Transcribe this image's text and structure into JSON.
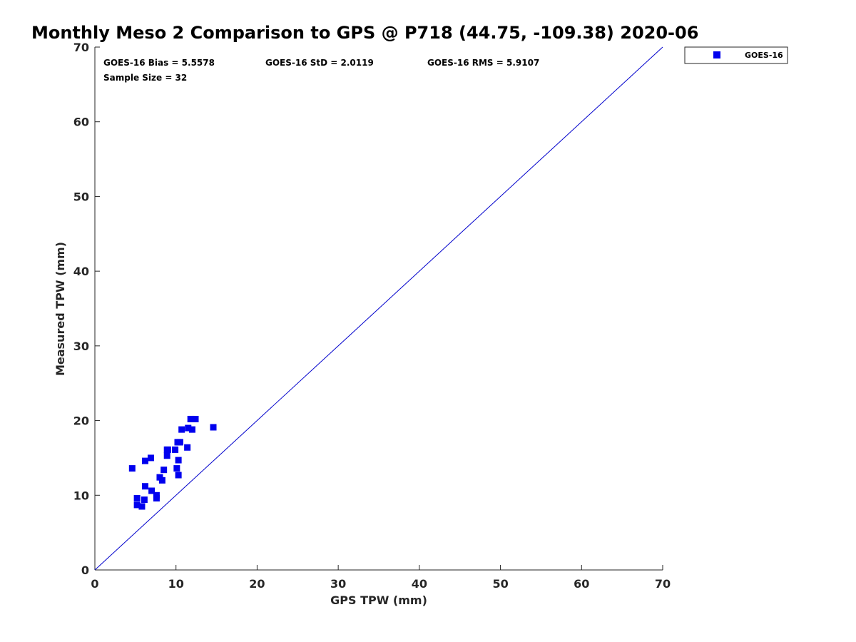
{
  "chart_data": {
    "type": "scatter",
    "title": "Monthly Meso 2 Comparison to GPS @ P718 (44.75, -109.38) 2020-06",
    "xlabel": "GPS TPW (mm)",
    "ylabel": "Measured TPW (mm)",
    "xlim": [
      0,
      70
    ],
    "ylim": [
      0,
      70
    ],
    "xticks": [
      0,
      10,
      20,
      30,
      40,
      50,
      60,
      70
    ],
    "yticks": [
      0,
      10,
      20,
      30,
      40,
      50,
      60,
      70
    ],
    "grid": false,
    "legend_position": "outside-top-right",
    "reference_line": {
      "x": [
        0,
        70
      ],
      "y": [
        0,
        70
      ],
      "color": "#0000cc"
    },
    "stats": [
      "GOES-16 Bias = 5.5578",
      "GOES-16 StD = 2.0119",
      "GOES-16 RMS = 5.9107",
      "Sample Size = 32"
    ],
    "series": [
      {
        "name": "GOES-16",
        "color": "#0000ee",
        "marker": "square",
        "x": [
          4.6,
          5.2,
          5.2,
          5.8,
          6.1,
          6.2,
          6.2,
          6.9,
          7.0,
          7.6,
          7.6,
          8.0,
          8.3,
          8.5,
          8.9,
          8.9,
          9.0,
          9.9,
          10.1,
          10.2,
          10.3,
          10.3,
          10.4,
          10.5,
          10.7,
          11.4,
          11.5,
          11.8,
          11.9,
          12.0,
          12.4,
          14.6
        ],
        "y": [
          13.6,
          9.6,
          8.7,
          8.5,
          9.4,
          11.2,
          14.6,
          15.0,
          10.6,
          9.6,
          10.0,
          12.4,
          12.0,
          13.4,
          15.3,
          16.1,
          16.1,
          16.1,
          13.6,
          17.1,
          12.7,
          14.7,
          17.1,
          17.1,
          18.8,
          16.4,
          19.0,
          20.2,
          20.2,
          18.8,
          20.2,
          19.1
        ]
      }
    ]
  }
}
